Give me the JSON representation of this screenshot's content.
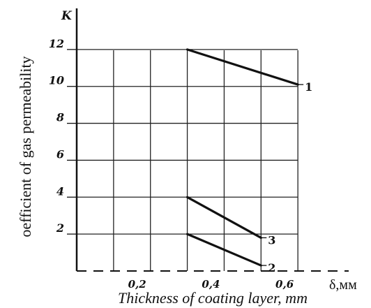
{
  "chart_data": {
    "type": "line",
    "xlabel": "Thickness of coating layer, mm",
    "ylabel": "oefficient of gas permeability",
    "y_axis_symbol": "K",
    "x_axis_symbol": "δ,мм",
    "xlim": [
      0,
      0.7
    ],
    "ylim": [
      0,
      14
    ],
    "x_ticks": [
      0.2,
      0.4,
      0.6
    ],
    "x_tick_labels": [
      "0,2",
      "0,4",
      "0,6"
    ],
    "y_ticks": [
      2,
      4,
      6,
      8,
      10,
      12
    ],
    "y_tick_labels": [
      "2",
      "4",
      "6",
      "8",
      "10",
      "12"
    ],
    "grid": true,
    "series": [
      {
        "label": "1",
        "x": [
          0.3,
          0.6
        ],
        "y": [
          12,
          10.1
        ]
      },
      {
        "label": "3",
        "x": [
          0.3,
          0.5
        ],
        "y": [
          4,
          1.8
        ]
      },
      {
        "label": "2",
        "x": [
          0.3,
          0.5
        ],
        "y": [
          2,
          0.3
        ]
      }
    ]
  }
}
